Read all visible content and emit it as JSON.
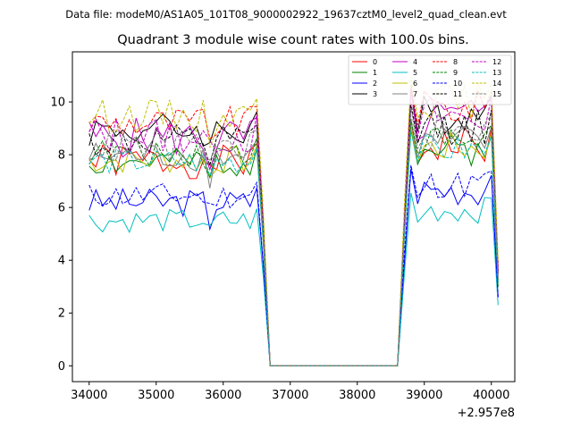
{
  "figure": {
    "suptitle": "Data file: modeM0/AS1A05_101T08_9000002922_19637cztM0_level2_quad_clean.evt"
  },
  "chart_data": {
    "type": "line",
    "title": "Quadrant 3 module wise count rates with 100.0s bins.",
    "xlabel": "",
    "ylabel": "",
    "x_offset_label": "+2.957e8",
    "xlim": [
      33750,
      40350
    ],
    "ylim": [
      -0.6,
      11.9
    ],
    "xticks": [
      34000,
      35000,
      36000,
      37000,
      38000,
      39000,
      40000
    ],
    "yticks": [
      0,
      2,
      4,
      6,
      8,
      10
    ],
    "grid": false,
    "legend_position": "top-right",
    "legend_columns": 4,
    "segments": [
      {
        "x_start": 34000,
        "x_end": 36500,
        "step": 100
      },
      {
        "x_start": 36600,
        "x_end": 36700,
        "step": 100
      },
      {
        "x_start": 36700,
        "x_end": 38600,
        "step": 100,
        "flat": 0
      },
      {
        "x_start": 38600,
        "x_end": 38700,
        "step": 100
      },
      {
        "x_start": 38700,
        "x_end": 40000,
        "step": 100
      },
      {
        "x_start": 40100,
        "x_end": 40100,
        "step": 100
      }
    ],
    "series": [
      {
        "name": "0",
        "color": "#ff0000",
        "dash": "solid",
        "level_low": 7.0,
        "level_high": 8.5,
        "drop_at": 36600,
        "drop_value": 4.6,
        "rise_value": 5.0,
        "end_value": 3.2,
        "seed": 1
      },
      {
        "name": "1",
        "color": "#008000",
        "dash": "solid",
        "level_low": 7.1,
        "level_high": 8.3,
        "drop_at": 36600,
        "drop_value": 4.5,
        "rise_value": 4.8,
        "end_value": 3.0,
        "seed": 2
      },
      {
        "name": "2",
        "color": "#0000ff",
        "dash": "solid",
        "level_low": 5.6,
        "level_high": 6.8,
        "drop_at": 36600,
        "drop_value": 3.7,
        "rise_value": 3.8,
        "end_value": 2.6,
        "seed": 3
      },
      {
        "name": "3",
        "color": "#000000",
        "dash": "solid",
        "level_low": 8.2,
        "level_high": 9.7,
        "drop_at": 36600,
        "drop_value": 5.3,
        "rise_value": 5.4,
        "end_value": 3.6,
        "seed": 4
      },
      {
        "name": "4",
        "color": "#bf00bf",
        "dash": "solid",
        "level_low": 7.8,
        "level_high": 9.5,
        "drop_at": 36600,
        "drop_value": 4.9,
        "rise_value": 5.2,
        "end_value": 3.4,
        "seed": 5
      },
      {
        "name": "5",
        "color": "#00bfbf",
        "dash": "solid",
        "level_low": 5.0,
        "level_high": 6.0,
        "drop_at": 36600,
        "drop_value": 3.3,
        "rise_value": 3.4,
        "end_value": 2.3,
        "seed": 6
      },
      {
        "name": "6",
        "color": "#bfbf00",
        "dash": "solid",
        "level_low": 7.2,
        "level_high": 8.4,
        "drop_at": 36600,
        "drop_value": 4.6,
        "rise_value": 4.9,
        "end_value": 3.1,
        "seed": 7
      },
      {
        "name": "7",
        "color": "#808080",
        "dash": "solid",
        "level_low": 7.3,
        "level_high": 8.6,
        "drop_at": 36600,
        "drop_value": 4.7,
        "rise_value": 5.0,
        "end_value": 3.1,
        "seed": 8
      },
      {
        "name": "8",
        "color": "#ff0000",
        "dash": "dashed",
        "level_low": 8.5,
        "level_high": 9.9,
        "drop_at": 36600,
        "drop_value": 5.4,
        "rise_value": 5.7,
        "end_value": 3.8,
        "seed": 9
      },
      {
        "name": "9",
        "color": "#008000",
        "dash": "dashed",
        "level_low": 7.5,
        "level_high": 8.7,
        "drop_at": 36600,
        "drop_value": 4.8,
        "rise_value": 5.1,
        "end_value": 3.2,
        "seed": 10
      },
      {
        "name": "10",
        "color": "#0000ff",
        "dash": "dashed",
        "level_low": 5.9,
        "level_high": 7.0,
        "drop_at": 36600,
        "drop_value": 3.8,
        "rise_value": 4.2,
        "end_value": 2.6,
        "seed": 11
      },
      {
        "name": "11",
        "color": "#000000",
        "dash": "dashed",
        "level_low": 7.8,
        "level_high": 9.2,
        "drop_at": 36600,
        "drop_value": 5.0,
        "rise_value": 5.3,
        "end_value": 3.5,
        "seed": 12
      },
      {
        "name": "12",
        "color": "#bf00bf",
        "dash": "dashed",
        "level_low": 7.9,
        "level_high": 9.6,
        "drop_at": 36600,
        "drop_value": 5.0,
        "rise_value": 5.3,
        "end_value": 3.5,
        "seed": 13
      },
      {
        "name": "13",
        "color": "#00bfbf",
        "dash": "dashed",
        "level_low": 7.2,
        "level_high": 8.3,
        "drop_at": 36600,
        "drop_value": 4.6,
        "rise_value": 4.9,
        "end_value": 3.1,
        "seed": 14
      },
      {
        "name": "14",
        "color": "#bfbf00",
        "dash": "dashed",
        "level_low": 8.8,
        "level_high": 10.2,
        "drop_at": 36600,
        "drop_value": 5.7,
        "rise_value": 6.0,
        "end_value": 4.0,
        "seed": 15
      },
      {
        "name": "15",
        "color": "#808080",
        "dash": "dashed",
        "level_low": 7.6,
        "level_high": 9.0,
        "drop_at": 36600,
        "drop_value": 4.9,
        "rise_value": 5.1,
        "end_value": 3.3,
        "seed": 16
      }
    ]
  }
}
